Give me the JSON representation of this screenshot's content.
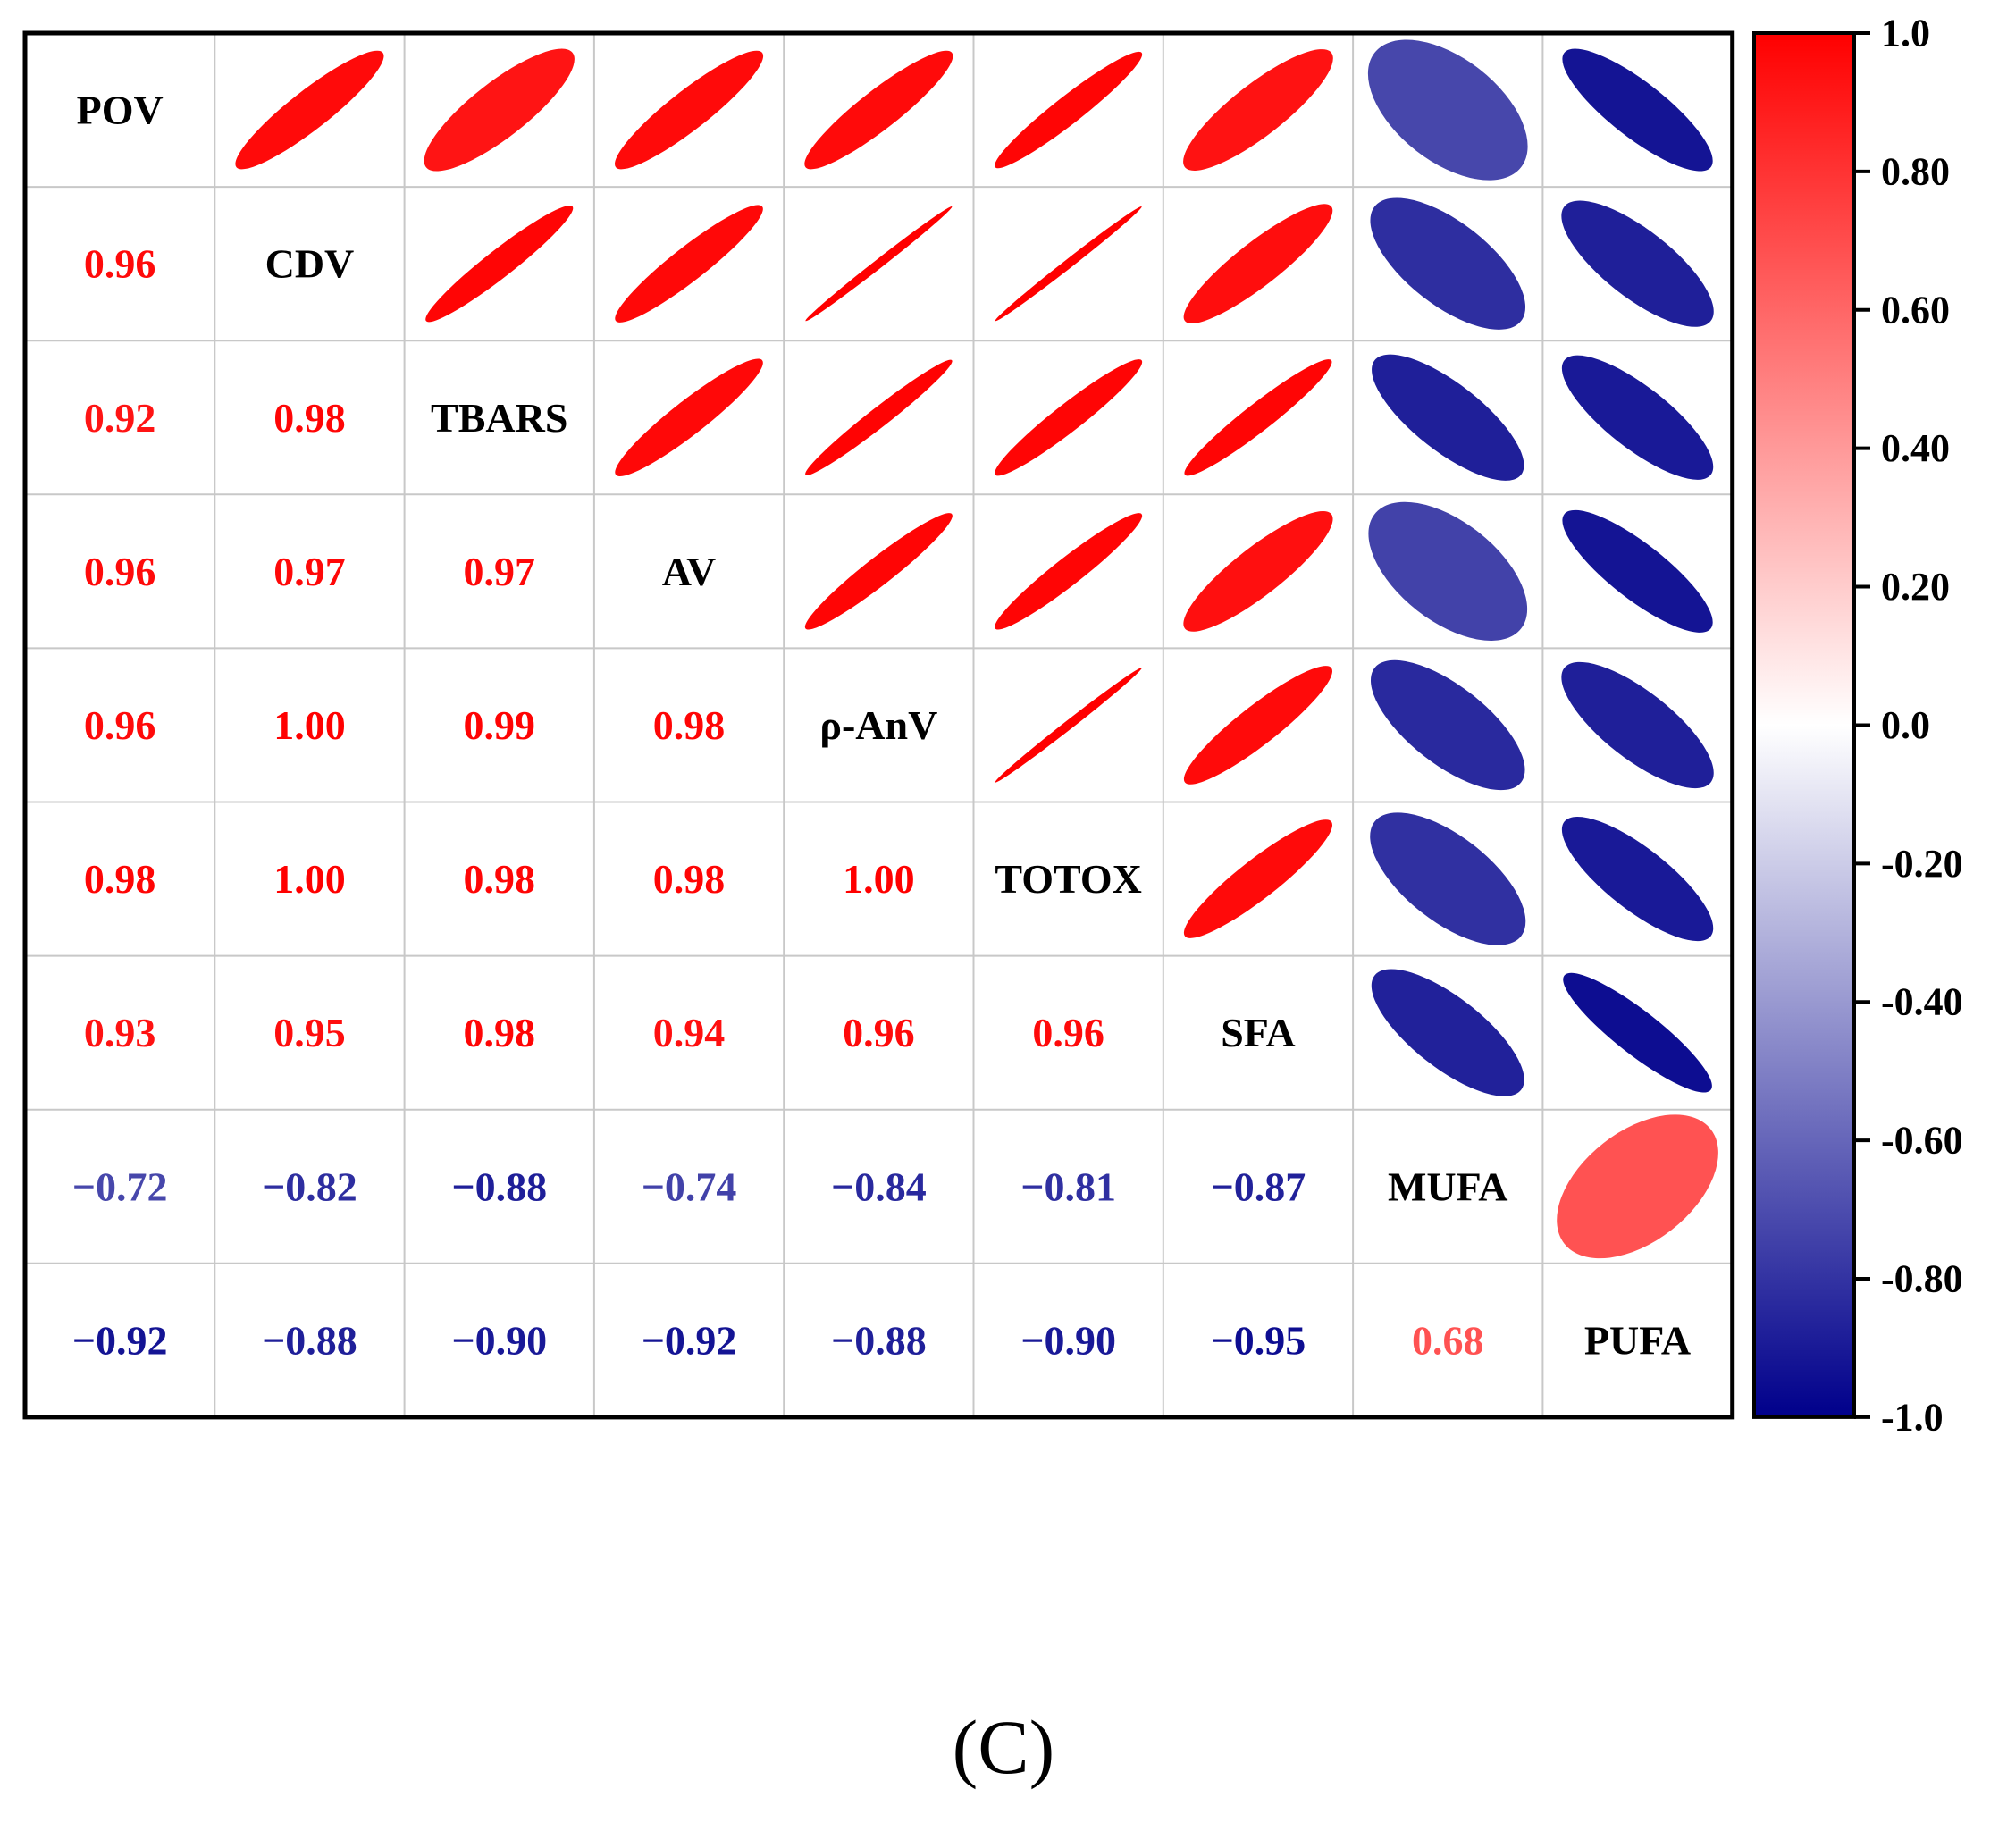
{
  "chart_data": {
    "type": "correlation-matrix",
    "variables": [
      "POV",
      "CDV",
      "TBARS",
      "AV",
      "ρ-AnV",
      "TOTOX",
      "SFA",
      "MUFA",
      "PUFA"
    ],
    "matrix": [
      [
        1.0,
        0.96,
        0.92,
        0.96,
        0.96,
        0.98,
        0.93,
        -0.72,
        -0.92
      ],
      [
        0.96,
        1.0,
        0.98,
        0.97,
        1.0,
        1.0,
        0.95,
        -0.82,
        -0.88
      ],
      [
        0.92,
        0.98,
        1.0,
        0.97,
        0.99,
        0.98,
        0.98,
        -0.88,
        -0.9
      ],
      [
        0.96,
        0.97,
        0.97,
        1.0,
        0.98,
        0.98,
        0.94,
        -0.74,
        -0.92
      ],
      [
        0.96,
        1.0,
        0.99,
        0.98,
        1.0,
        1.0,
        0.96,
        -0.84,
        -0.88
      ],
      [
        0.98,
        1.0,
        0.98,
        0.98,
        1.0,
        1.0,
        0.96,
        -0.81,
        -0.9
      ],
      [
        0.93,
        0.95,
        0.98,
        0.94,
        0.96,
        0.96,
        1.0,
        -0.87,
        -0.95
      ],
      [
        -0.72,
        -0.82,
        -0.88,
        -0.74,
        -0.84,
        -0.81,
        -0.87,
        1.0,
        0.68
      ],
      [
        -0.92,
        -0.88,
        -0.9,
        -0.92,
        -0.88,
        -0.9,
        -0.95,
        0.68,
        1.0
      ]
    ],
    "lower_labels": [
      [
        "0.96"
      ],
      [
        "0.92",
        "0.98"
      ],
      [
        "0.96",
        "0.97",
        "0.97"
      ],
      [
        "0.96",
        "1.00",
        "0.99",
        "0.98"
      ],
      [
        "0.98",
        "1.00",
        "0.98",
        "0.98",
        "1.00"
      ],
      [
        "0.93",
        "0.95",
        "0.98",
        "0.94",
        "0.96",
        "0.96"
      ],
      [
        "−0.72",
        "−0.82",
        "−0.88",
        "−0.74",
        "−0.84",
        "−0.81",
        "−0.87"
      ],
      [
        "−0.92",
        "−0.88",
        "−0.90",
        "−0.92",
        "−0.88",
        "−0.90",
        "−0.95",
        "0.68"
      ]
    ],
    "colorbar": {
      "range": [
        -1.0,
        1.0
      ],
      "ticks": [
        1.0,
        0.8,
        0.6,
        0.4,
        0.2,
        0.0,
        -0.2,
        -0.4,
        -0.6,
        -0.8,
        -1.0
      ],
      "tick_labels": [
        "1.0",
        "0.80",
        "0.60",
        "0.40",
        "0.20",
        "0.0",
        "-0.20",
        "-0.40",
        "-0.60",
        "-0.80",
        "-1.0"
      ],
      "colors": {
        "high": "#ff0000",
        "mid": "#ffffff",
        "low": "#00008b"
      }
    }
  },
  "panel_label": "(C)",
  "colors": {
    "frame": "#000000",
    "grid": "#c8c8c8",
    "diagonal_text": "#000000"
  }
}
